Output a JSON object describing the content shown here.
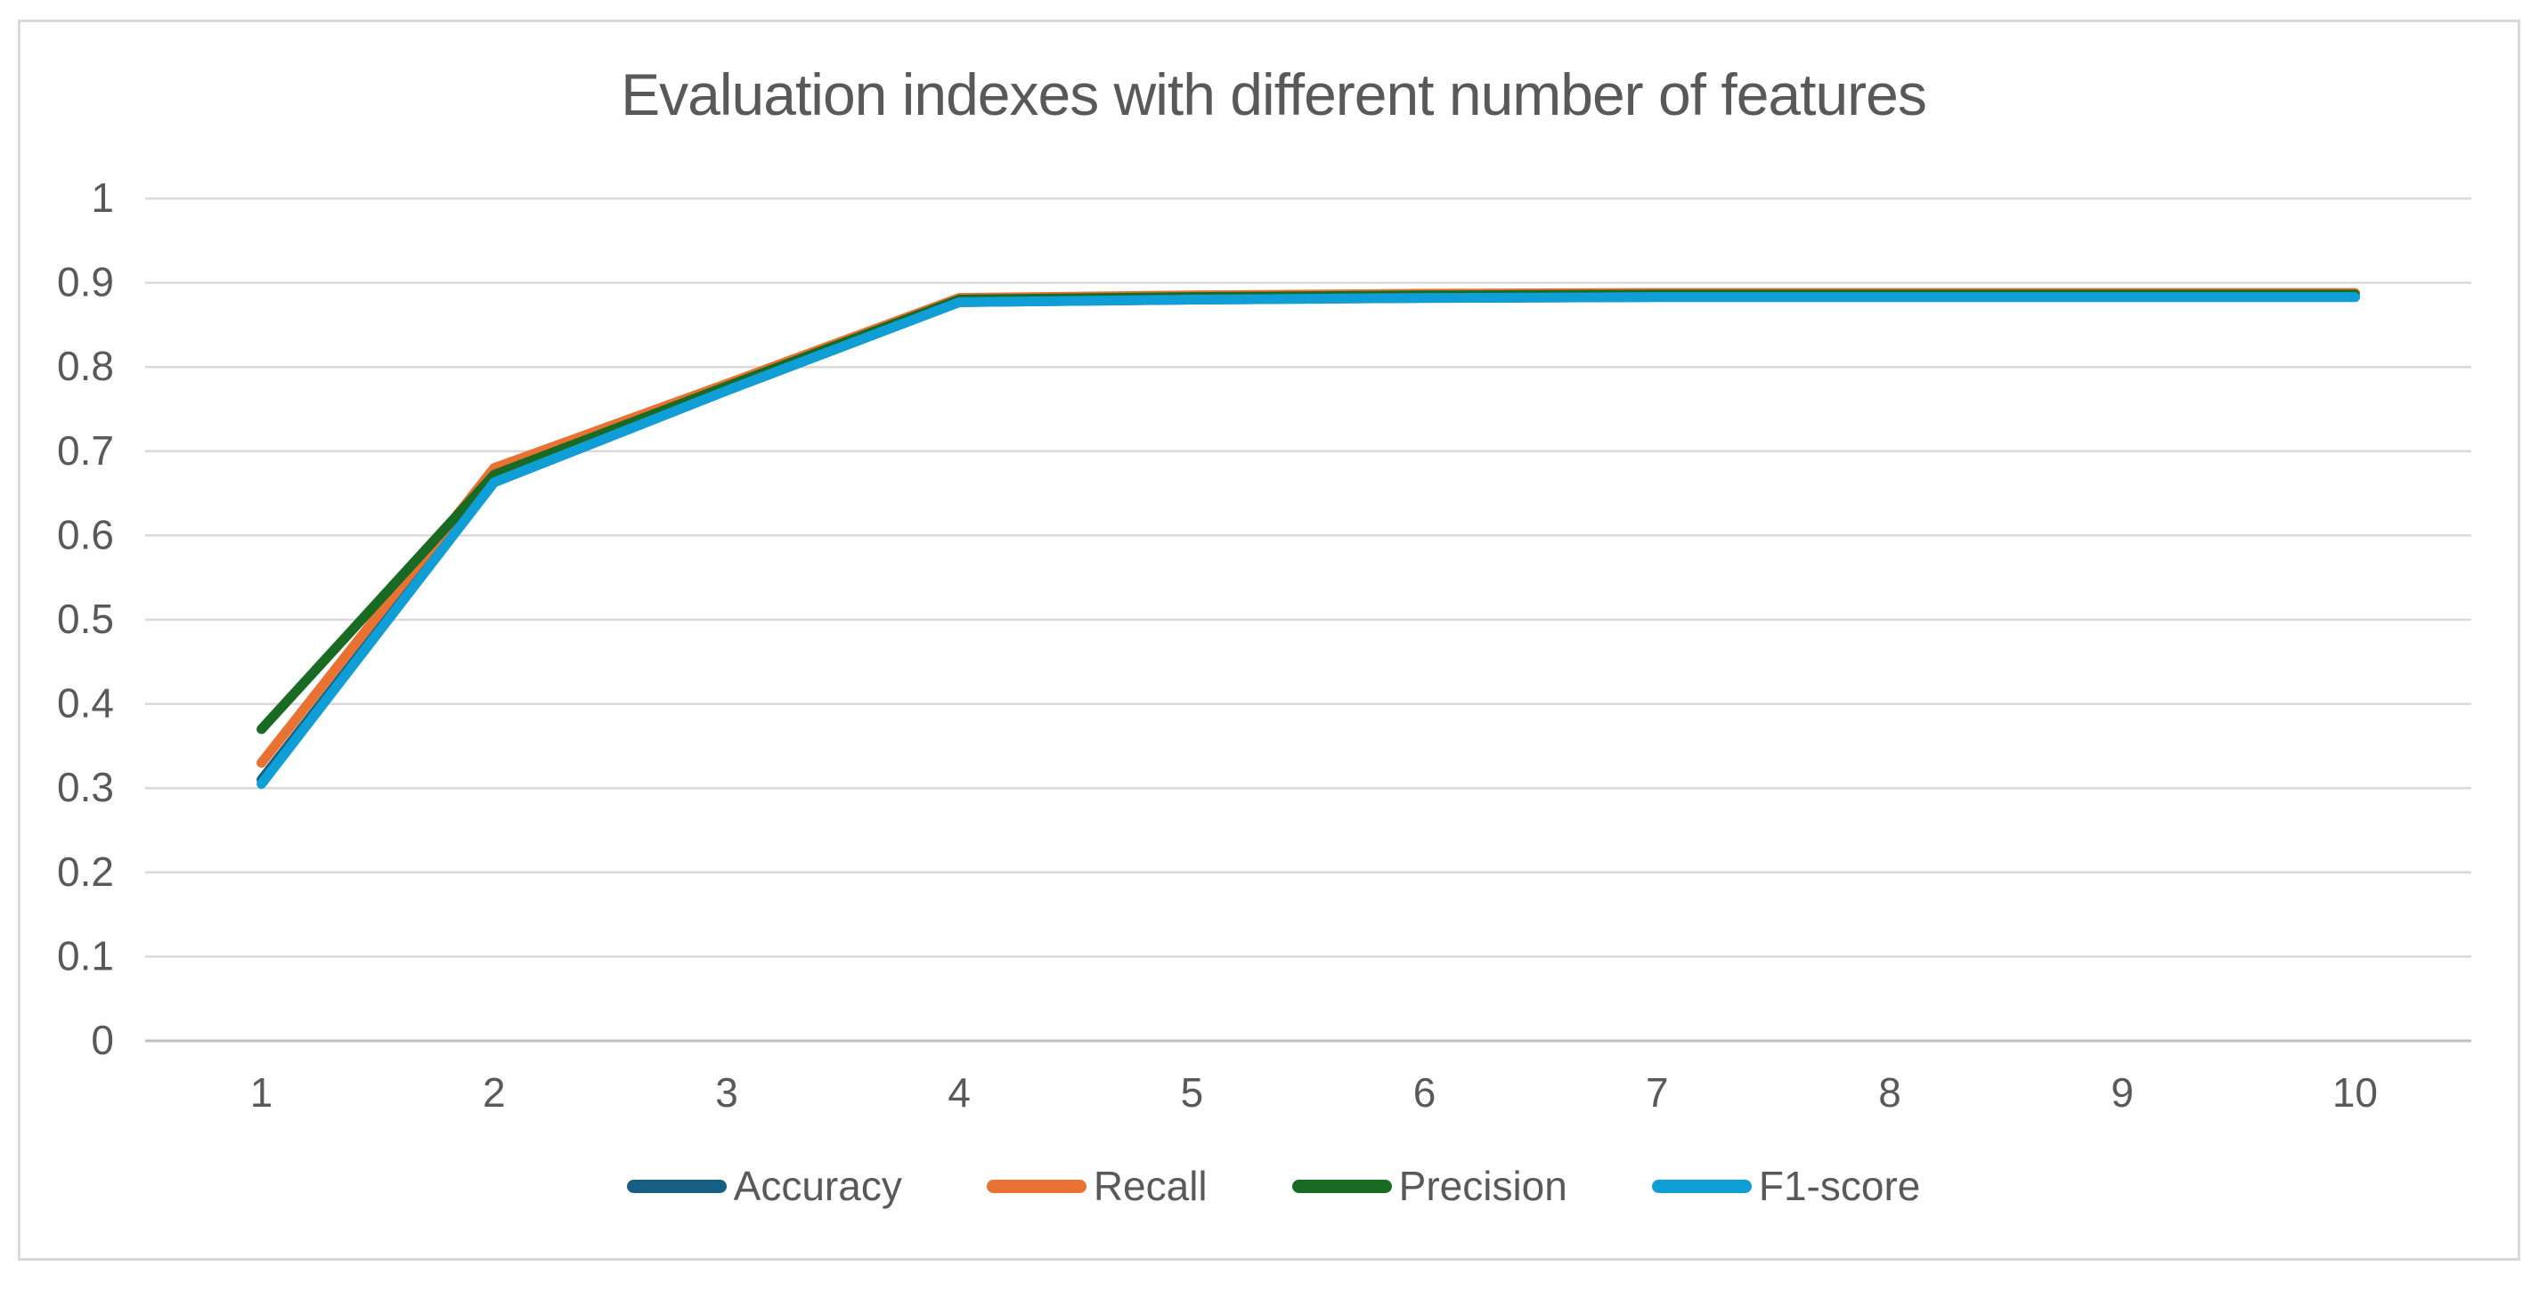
{
  "chart_data": {
    "type": "line",
    "title": "Evaluation indexes with different number of features",
    "xlabel": "",
    "ylabel": "",
    "categories": [
      1,
      2,
      3,
      4,
      5,
      6,
      7,
      8,
      9,
      10
    ],
    "series": [
      {
        "name": "Accuracy",
        "color": "#156082",
        "values": [
          0.31,
          0.663,
          0.772,
          0.877,
          0.88,
          0.882,
          0.883,
          0.883,
          0.883,
          0.883
        ]
      },
      {
        "name": "Recall",
        "color": "#E97132",
        "values": [
          0.33,
          0.68,
          0.78,
          0.882,
          0.885,
          0.887,
          0.888,
          0.888,
          0.888,
          0.888
        ]
      },
      {
        "name": "Precision",
        "color": "#196B24",
        "values": [
          0.37,
          0.672,
          0.777,
          0.88,
          0.883,
          0.885,
          0.886,
          0.886,
          0.886,
          0.886
        ]
      },
      {
        "name": "F1-score",
        "color": "#0F9ED5",
        "values": [
          0.305,
          0.663,
          0.772,
          0.877,
          0.88,
          0.882,
          0.883,
          0.883,
          0.883,
          0.883
        ]
      }
    ],
    "ylim": [
      0,
      1
    ],
    "ytick_step": 0.1,
    "ytick_labels": [
      "0",
      "0.1",
      "0.2",
      "0.3",
      "0.4",
      "0.5",
      "0.6",
      "0.7",
      "0.8",
      "0.9",
      "1"
    ],
    "grid": true,
    "legend_position": "bottom"
  },
  "colors": {
    "background": "#FFFFFF",
    "frame_border": "#D9D9D9",
    "gridline": "#D9D9D9",
    "axis_line": "#BFBFBF",
    "text": "#595959"
  }
}
